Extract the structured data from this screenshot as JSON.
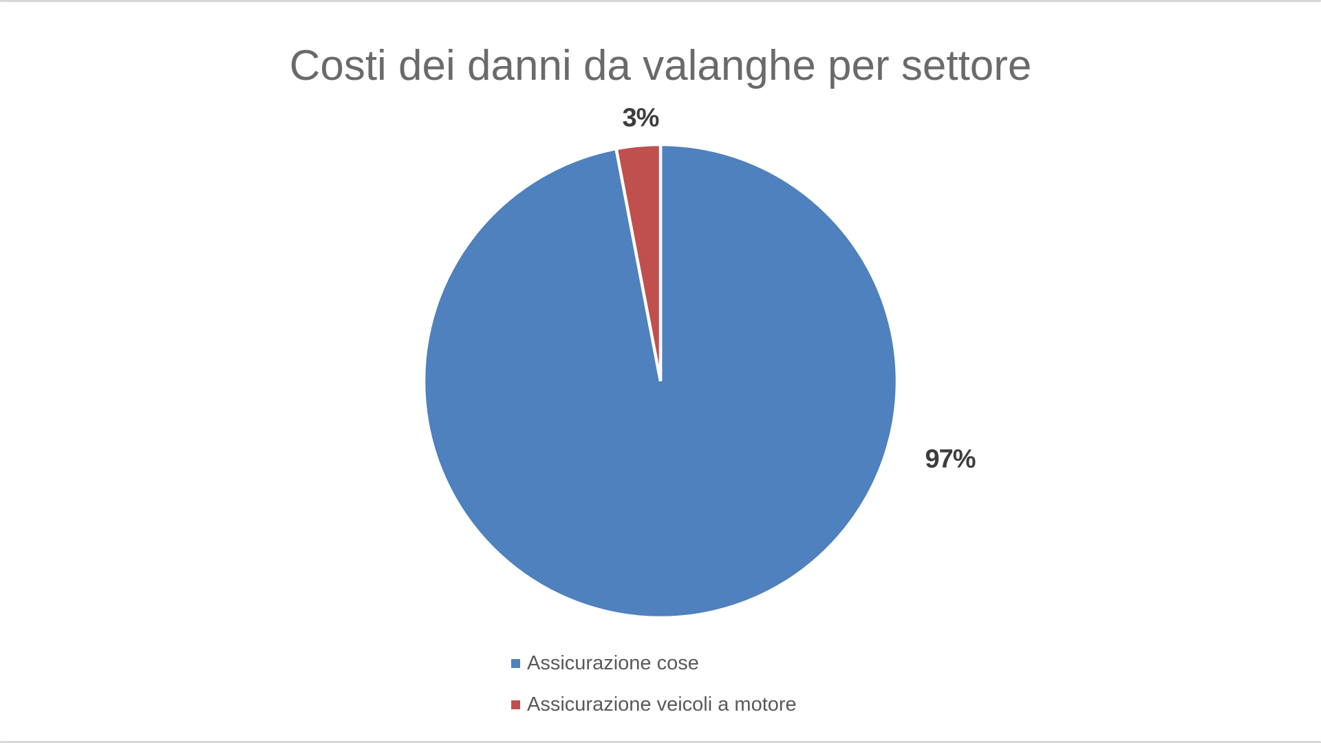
{
  "title": {
    "text": "Costi dei danni da valanghe per settore",
    "color": "#6a6a6a"
  },
  "chart_data": {
    "type": "pie",
    "title": "Costi dei danni da valanghe per settore",
    "series": [
      {
        "label": "Assicurazione cose",
        "value": 97,
        "display_label": "97%",
        "color": "#4E81BD"
      },
      {
        "label": "Assicurazione veicoli a motore",
        "value": 3,
        "display_label": "3%",
        "color": "#C0504D"
      }
    ],
    "start_angle_deg": 0,
    "direction": "clockwise",
    "slice_border_color": "#ffffff",
    "data_labels": "percent-outside",
    "legend_position": "bottom-left-stacked",
    "background": "#ffffff"
  },
  "colors": {
    "title_text": "#6a6a6a",
    "data_label_text": "#3d3d3d",
    "legend_text": "#595959",
    "edge_strip": "#d8d8d8"
  }
}
